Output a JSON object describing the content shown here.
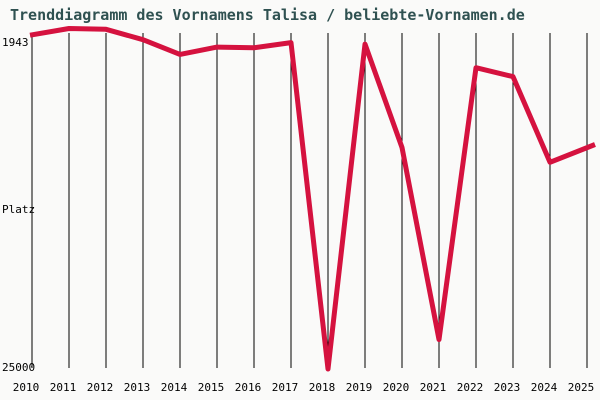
{
  "title": "Trenddiagramm des Vornamens Talisa / beliebte-Vornamen.de",
  "colors": {
    "background": "#fafaf9",
    "title": "#2f5151",
    "grid": "#000000",
    "axis_text": "#000000",
    "line": "#d5123f"
  },
  "chart_data": {
    "type": "line",
    "title": "Trenddiagramm des Vornamens Talisa / beliebte-Vornamen.de",
    "x": [
      2010,
      2011,
      2012,
      2013,
      2014,
      2015,
      2016,
      2017,
      2018,
      2019,
      2020,
      2021,
      2022,
      2023,
      2024,
      2025
    ],
    "series": [
      {
        "name": "Talisa",
        "values": [
          2400,
          1943,
          2000,
          2700,
          3700,
          3200,
          3250,
          2900,
          25000,
          3000,
          10000,
          23000,
          4600,
          5200,
          11000,
          9800
        ]
      }
    ],
    "xlabel": "",
    "ylabel": "Platz",
    "y_axis": {
      "top_label": "1943",
      "bottom_label": "25000",
      "inverted": true,
      "ylim": [
        1943,
        25000
      ]
    },
    "grid": "vertical-only",
    "legend": "none",
    "line_color": "#d5123f"
  }
}
